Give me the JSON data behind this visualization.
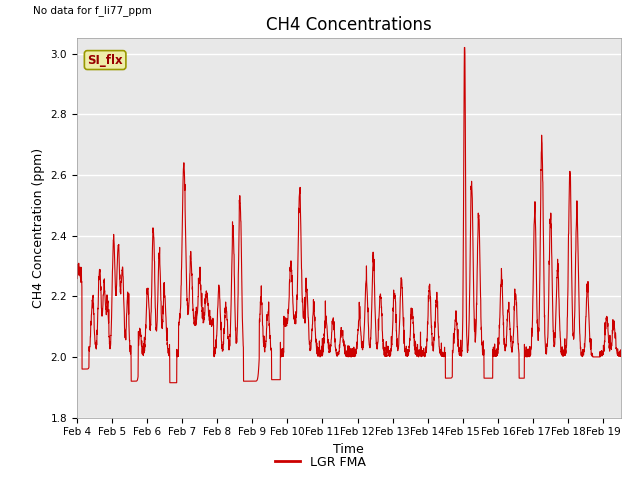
{
  "title": "CH4 Concentrations",
  "top_left_note": "No data for f_li77_ppm",
  "ylabel": "CH4 Concentration (ppm)",
  "xlabel": "Time",
  "ylim": [
    1.8,
    3.05
  ],
  "yticks": [
    1.8,
    2.0,
    2.2,
    2.4,
    2.6,
    2.8,
    3.0
  ],
  "line_color": "#cc0000",
  "line_width": 0.8,
  "legend_label": "LGR FMA",
  "legend_line_color": "#cc0000",
  "si_flx_label": "SI_flx",
  "si_flx_bg": "#eeeeaa",
  "si_flx_border": "#999900",
  "si_flx_text_color": "#990000",
  "bg_color": "#e8e8e8",
  "fig_bg": "#ffffff",
  "x_tick_labels": [
    "Feb 4",
    "Feb 5",
    "Feb 6",
    "Feb 7",
    "Feb 8",
    "Feb 9",
    "Feb 10",
    "Feb 11",
    "Feb 12",
    "Feb 13",
    "Feb 14",
    "Feb 15",
    "Feb 16",
    "Feb 17",
    "Feb 18",
    "Feb 19"
  ],
  "grid_color": "#ffffff",
  "grid_lw": 1.0,
  "title_fontsize": 12,
  "axis_label_fontsize": 9,
  "tick_fontsize": 7.5
}
